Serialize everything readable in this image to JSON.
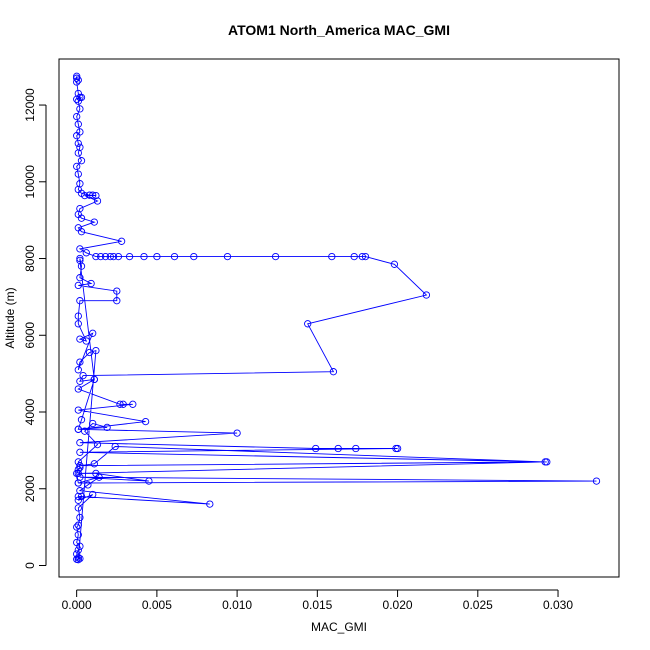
{
  "chart_data": {
    "type": "line",
    "title": "ATOM1 North_America MAC_GMI",
    "xlabel": "MAC_GMI",
    "ylabel": "Altitude (m)",
    "xlim": [
      -0.0011,
      0.0338
    ],
    "ylim": [
      -300,
      13200
    ],
    "xticks": [
      0.0,
      0.005,
      0.01,
      0.015,
      0.02,
      0.025,
      0.03
    ],
    "xtick_labels": [
      "0.000",
      "0.005",
      "0.010",
      "0.015",
      "0.020",
      "0.025",
      "0.030"
    ],
    "yticks": [
      0,
      2000,
      4000,
      6000,
      8000,
      10000,
      12000
    ],
    "ytick_labels": [
      "0",
      "2000",
      "4000",
      "6000",
      "8000",
      "10000",
      "12000"
    ],
    "grid": false,
    "legend": "none",
    "markers": "open-circle",
    "series": [
      {
        "color": "#0000ff",
        "points": [
          [
            0.0,
            12750
          ],
          [
            0.0,
            12700
          ],
          [
            0.0001,
            12650
          ],
          [
            0.0,
            12600
          ],
          [
            0.0001,
            12300
          ],
          [
            0.0002,
            12200
          ],
          [
            0.0,
            12150
          ],
          [
            0.0003,
            12200
          ],
          [
            0.0001,
            12100
          ],
          [
            0.0002,
            11900
          ],
          [
            0.0,
            11700
          ],
          [
            0.0001,
            11500
          ],
          [
            0.0002,
            11300
          ],
          [
            0.0,
            11200
          ],
          [
            0.0001,
            11000
          ],
          [
            0.0002,
            10900
          ],
          [
            0.0001,
            10750
          ],
          [
            0.0003,
            10550
          ],
          [
            0.0,
            10400
          ],
          [
            0.0001,
            10200
          ],
          [
            0.0002,
            9950
          ],
          [
            0.0001,
            9800
          ],
          [
            0.0003,
            9700
          ],
          [
            0.0008,
            9650
          ],
          [
            0.001,
            9650
          ],
          [
            0.0012,
            9640
          ],
          [
            0.0005,
            9640
          ],
          [
            0.0013,
            9500
          ],
          [
            0.0002,
            9300
          ],
          [
            0.0001,
            9150
          ],
          [
            0.0003,
            9050
          ],
          [
            0.0011,
            8950
          ],
          [
            0.0001,
            8800
          ],
          [
            0.0003,
            8700
          ],
          [
            0.0028,
            8450
          ],
          [
            0.0002,
            8250
          ],
          [
            0.0006,
            8150
          ],
          [
            0.0012,
            8050
          ],
          [
            0.0015,
            8050
          ],
          [
            0.0018,
            8050
          ],
          [
            0.0021,
            8050
          ],
          [
            0.0023,
            8050
          ],
          [
            0.0026,
            8050
          ],
          [
            0.0033,
            8050
          ],
          [
            0.0042,
            8050
          ],
          [
            0.005,
            8050
          ],
          [
            0.0061,
            8050
          ],
          [
            0.0073,
            8050
          ],
          [
            0.0094,
            8050
          ],
          [
            0.0124,
            8050
          ],
          [
            0.0159,
            8050
          ],
          [
            0.0173,
            8050
          ],
          [
            0.0178,
            8050
          ],
          [
            0.018,
            8050
          ],
          [
            0.0198,
            7850
          ],
          [
            0.0218,
            7050
          ],
          [
            0.0144,
            6300
          ],
          [
            0.016,
            5050
          ],
          [
            0.0004,
            4950
          ],
          [
            0.0002,
            4800
          ],
          [
            0.0011,
            4850
          ],
          [
            0.0001,
            4600
          ],
          [
            0.0027,
            4200
          ],
          [
            0.0029,
            4200
          ],
          [
            0.0035,
            4200
          ],
          [
            0.0001,
            4050
          ],
          [
            0.0043,
            3750
          ],
          [
            0.0001,
            3550
          ],
          [
            0.01,
            3450
          ],
          [
            0.0002,
            3200
          ],
          [
            0.0149,
            3050
          ],
          [
            0.0163,
            3050
          ],
          [
            0.0174,
            3050
          ],
          [
            0.0199,
            3050
          ],
          [
            0.02,
            3050
          ],
          [
            0.0002,
            2950
          ],
          [
            0.0293,
            2700
          ],
          [
            0.0002,
            2600
          ],
          [
            0.0011,
            2650
          ],
          [
            0.0024,
            3100
          ],
          [
            0.0292,
            2700
          ],
          [
            0.0001,
            2400
          ],
          [
            0.0012,
            2400
          ],
          [
            0.0045,
            2200
          ],
          [
            0.0002,
            2300
          ],
          [
            0.0324,
            2200
          ],
          [
            0.0001,
            2150
          ],
          [
            0.0014,
            2300
          ],
          [
            0.0007,
            2100
          ],
          [
            0.0002,
            1950
          ],
          [
            0.0083,
            1600
          ],
          [
            0.0001,
            1800
          ],
          [
            0.0003,
            1800
          ],
          [
            0.0001,
            1700
          ],
          [
            0.001,
            1850
          ],
          [
            0.0001,
            1500
          ],
          [
            0.0002,
            1250
          ],
          [
            0.0001,
            1050
          ],
          [
            0.0,
            1000
          ],
          [
            0.0001,
            800
          ],
          [
            0.0,
            600
          ],
          [
            0.0002,
            500
          ],
          [
            0.0001,
            400
          ],
          [
            0.0,
            300
          ],
          [
            0.0001,
            200
          ],
          [
            0.0002,
            180
          ],
          [
            0.0,
            160
          ],
          [
            0.0001,
            150
          ],
          [
            0.0012,
            5600
          ],
          [
            0.0008,
            5550
          ],
          [
            0.0002,
            5300
          ],
          [
            0.0001,
            5100
          ],
          [
            0.001,
            6050
          ],
          [
            0.0002,
            5900
          ],
          [
            0.0006,
            5850
          ],
          [
            0.0001,
            6300
          ],
          [
            0.0001,
            6500
          ],
          [
            0.0002,
            6900
          ],
          [
            0.0025,
            6900
          ],
          [
            0.0025,
            7150
          ],
          [
            0.0001,
            7300
          ],
          [
            0.0009,
            7350
          ],
          [
            0.0002,
            7500
          ],
          [
            0.0003,
            7800
          ],
          [
            0.0002,
            8000
          ],
          [
            0.0002,
            7950
          ],
          [
            0.0011,
            4850
          ],
          [
            0.0003,
            3800
          ],
          [
            0.0001,
            3550
          ],
          [
            0.0019,
            3600
          ],
          [
            0.001,
            3700
          ],
          [
            0.0005,
            3500
          ],
          [
            0.0013,
            3150
          ],
          [
            0.0001,
            2700
          ],
          [
            0.0002,
            2550
          ],
          [
            0.0001,
            2500
          ],
          [
            0.0,
            2400
          ],
          [
            0.0001,
            2150
          ]
        ]
      }
    ]
  }
}
